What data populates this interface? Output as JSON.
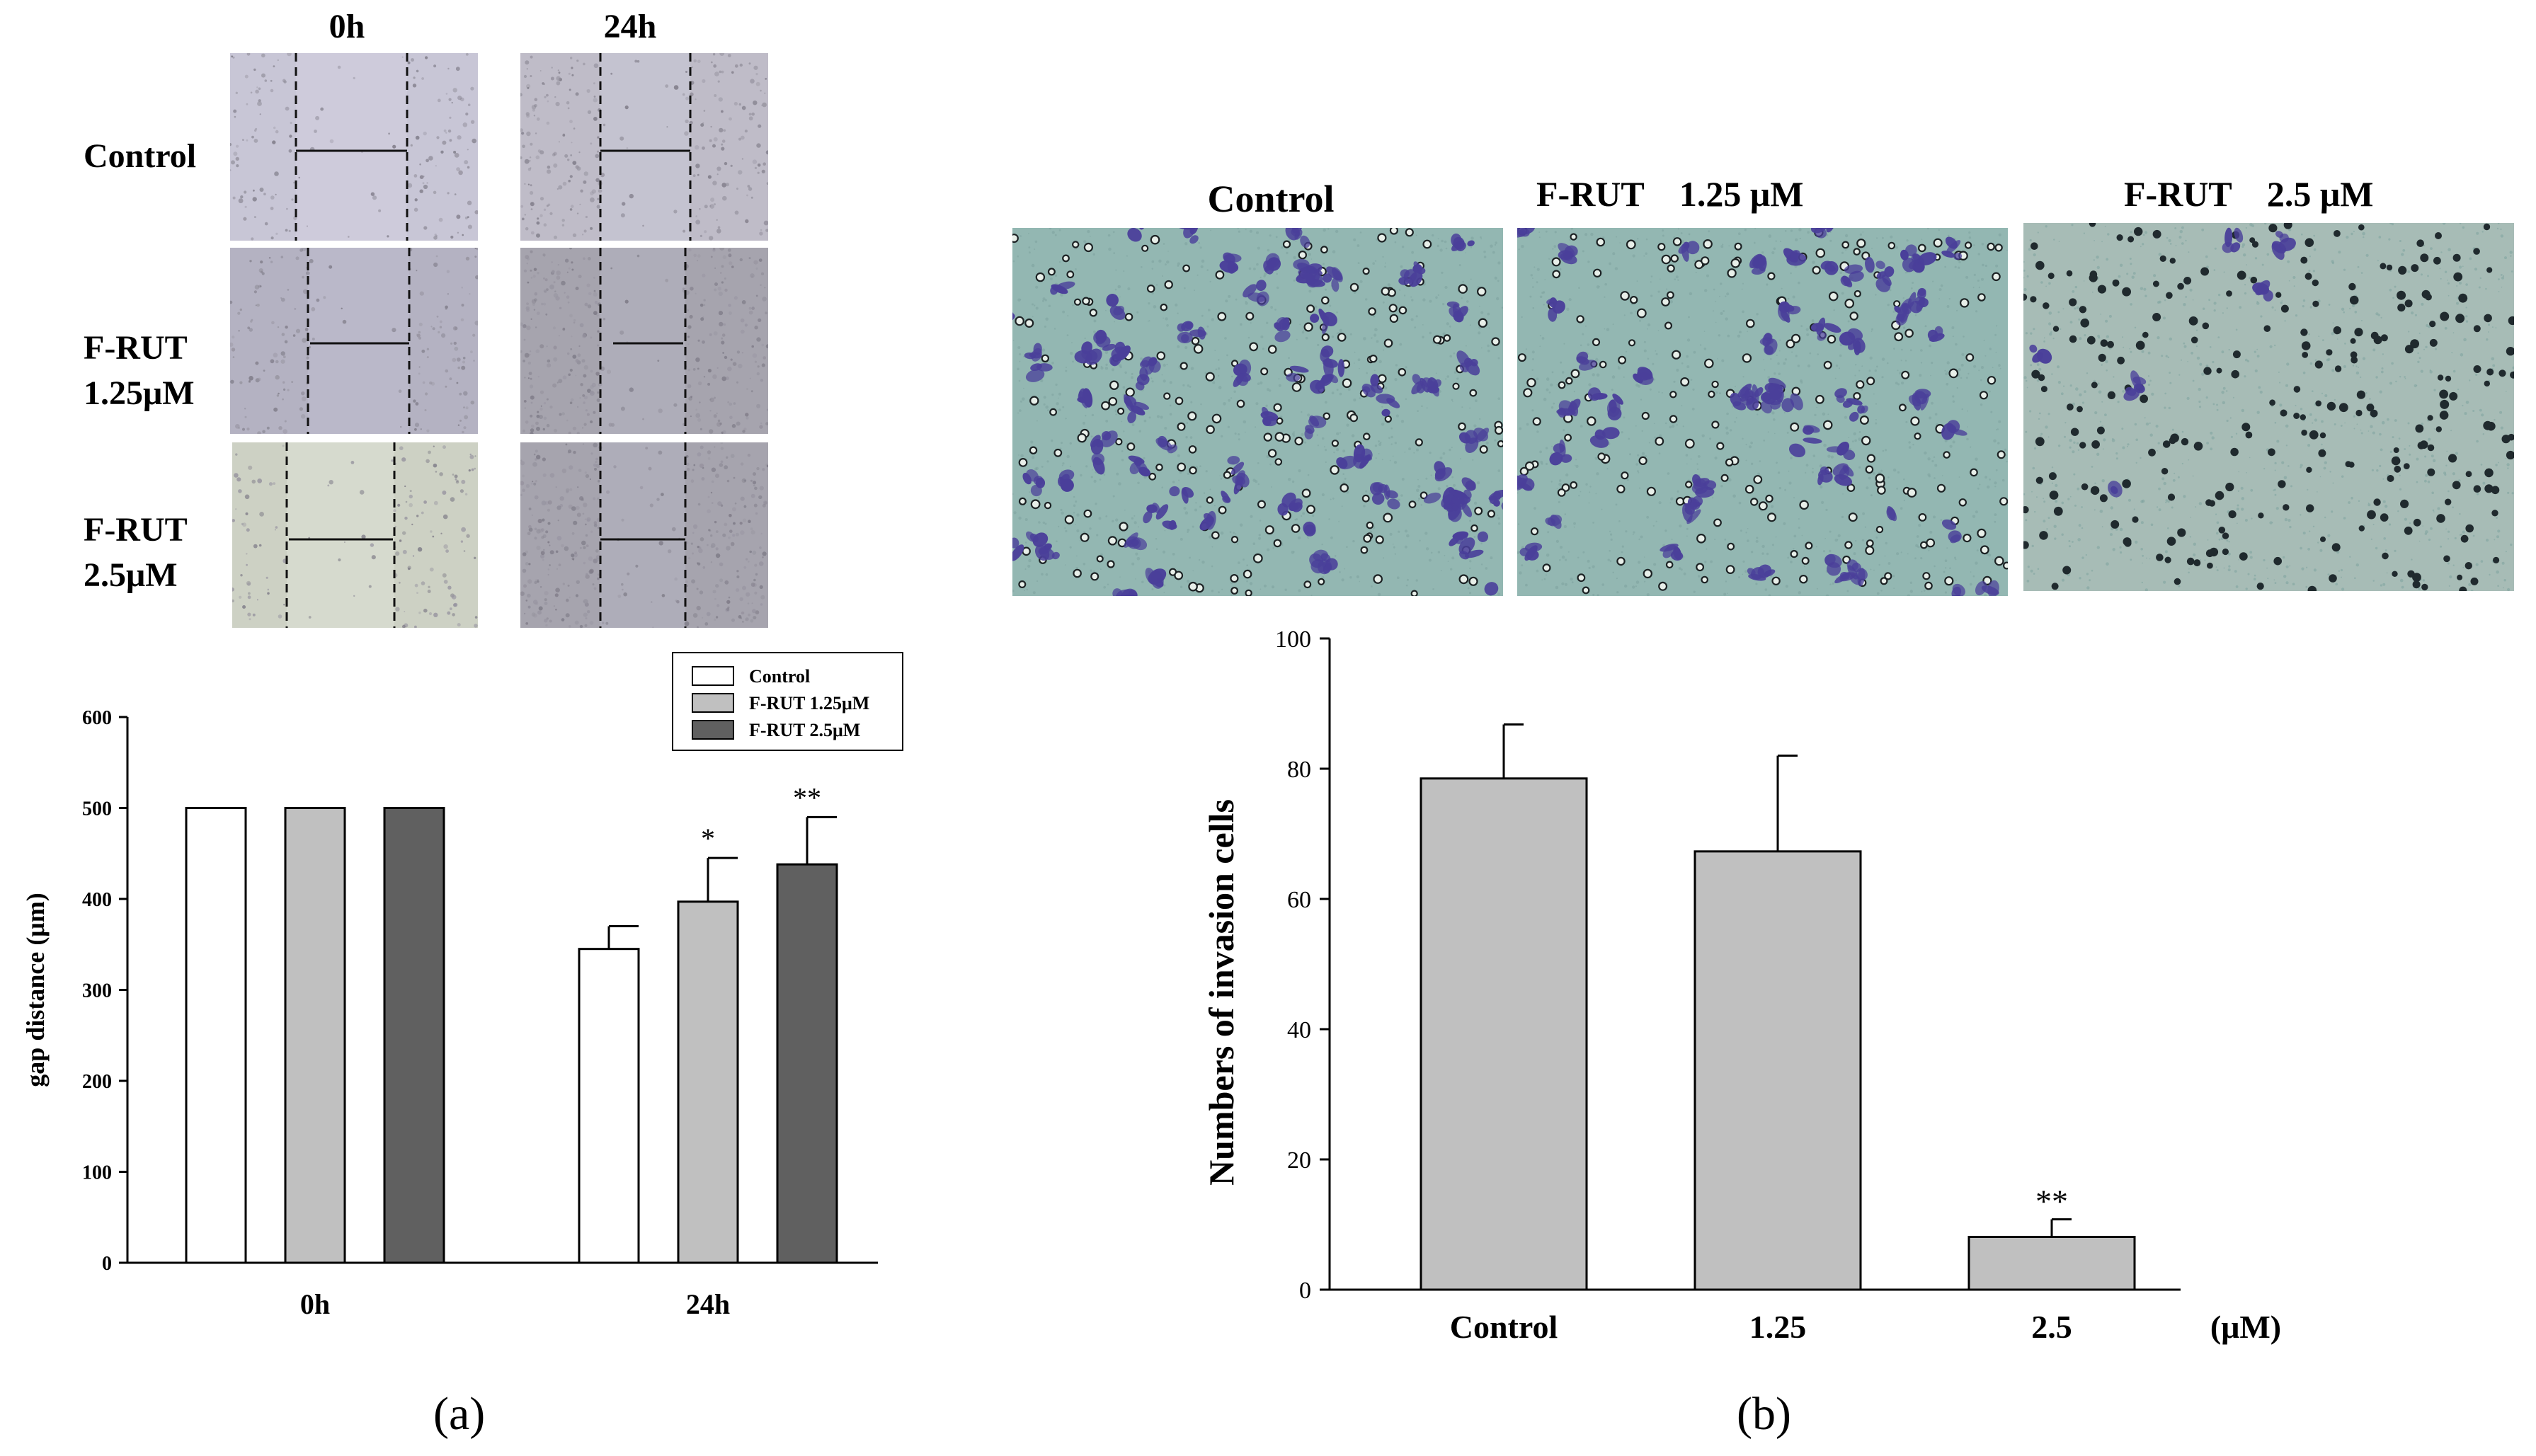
{
  "panel_a": {
    "letter": "(a)",
    "time_headers": [
      "0h",
      "24h"
    ],
    "row_labels": [
      {
        "line1": "Control",
        "line2": ""
      },
      {
        "line1": "F-RUT",
        "line2": "1.25μM"
      },
      {
        "line1": "F-RUT",
        "line2": "2.5μM"
      }
    ]
  },
  "panel_b": {
    "letter": "(b)",
    "photo_labels": [
      "Control",
      "F-RUT    1.25 μM",
      "F-RUT    2.5 μM"
    ]
  },
  "colors": {
    "scratch_light": "#c9c7d8",
    "scratch_dark": "#a9a8b5",
    "transwell_bg": "#8fb5b0",
    "stain": "#4a3f9a",
    "bar_control_a": "#ffffff",
    "bar_mid": "#c0c0c0",
    "bar_dark": "#606060",
    "bar_b": "#c0c0c0"
  },
  "chart_data": [
    {
      "type": "bar",
      "categories": [
        "0h",
        "24h"
      ],
      "series": [
        {
          "name": "Control",
          "values": [
            500,
            345
          ],
          "errors": [
            0,
            25
          ],
          "sig": [
            "",
            ""
          ]
        },
        {
          "name": "F-RUT 1.25μM",
          "values": [
            500,
            397
          ],
          "errors": [
            0,
            48
          ],
          "sig": [
            "",
            "*"
          ]
        },
        {
          "name": "F-RUT 2.5μM",
          "values": [
            500,
            438
          ],
          "errors": [
            0,
            52
          ],
          "sig": [
            "",
            "**"
          ]
        }
      ],
      "ylabel": "gap distance (μm)",
      "ylim": [
        0,
        600
      ],
      "yticks": [
        0,
        100,
        200,
        300,
        400,
        500,
        600
      ],
      "legend": "top-right"
    },
    {
      "type": "bar",
      "categories": [
        "Control",
        "1.25",
        "2.5"
      ],
      "values": [
        78.5,
        67.3,
        8.1
      ],
      "errors": [
        8.3,
        14.7,
        2.7
      ],
      "sig": [
        "",
        "",
        "**"
      ],
      "ylabel": "Numbers of invasion cells",
      "xunit": "(μM)",
      "ylim": [
        0,
        100
      ],
      "yticks": [
        0,
        20,
        40,
        60,
        80,
        100
      ]
    }
  ]
}
